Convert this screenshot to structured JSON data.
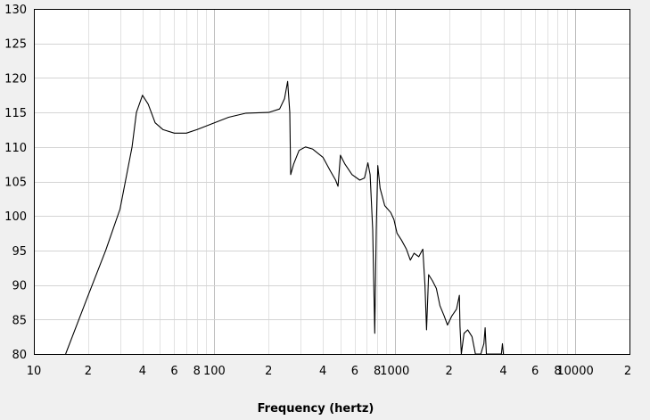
{
  "chart_data": {
    "type": "line",
    "title": "",
    "xlabel": "Frequency (hertz)",
    "ylabel": "",
    "x_scale": "log",
    "xlim": [
      10,
      20000
    ],
    "ylim": [
      80,
      130
    ],
    "grid": true,
    "y_ticks": [
      80,
      85,
      90,
      95,
      100,
      105,
      110,
      115,
      120,
      125,
      130
    ],
    "x_tick_labels": [
      {
        "value": 10,
        "label": "10"
      },
      {
        "value": 20,
        "label": "2"
      },
      {
        "value": 40,
        "label": "4"
      },
      {
        "value": 60,
        "label": "6"
      },
      {
        "value": 80,
        "label": "8"
      },
      {
        "value": 100,
        "label": "100"
      },
      {
        "value": 200,
        "label": "2"
      },
      {
        "value": 400,
        "label": "4"
      },
      {
        "value": 600,
        "label": "6"
      },
      {
        "value": 800,
        "label": "8"
      },
      {
        "value": 1000,
        "label": "1000"
      },
      {
        "value": 2000,
        "label": "2"
      },
      {
        "value": 4000,
        "label": "4"
      },
      {
        "value": 6000,
        "label": "6"
      },
      {
        "value": 8000,
        "label": "8"
      },
      {
        "value": 10000,
        "label": "10000"
      },
      {
        "value": 20000,
        "label": "2"
      }
    ],
    "series": [
      {
        "name": "",
        "color": "#000000",
        "points": [
          [
            15,
            80
          ],
          [
            20,
            88.5
          ],
          [
            25,
            95
          ],
          [
            30,
            101
          ],
          [
            35,
            110
          ],
          [
            37,
            115
          ],
          [
            40,
            117.5
          ],
          [
            43,
            116.2
          ],
          [
            47,
            113.5
          ],
          [
            52,
            112.5
          ],
          [
            60,
            112
          ],
          [
            70,
            112
          ],
          [
            80,
            112.5
          ],
          [
            100,
            113.5
          ],
          [
            120,
            114.3
          ],
          [
            150,
            114.9
          ],
          [
            200,
            115
          ],
          [
            230,
            115.5
          ],
          [
            245,
            117
          ],
          [
            255,
            119.5
          ],
          [
            262,
            115
          ],
          [
            265,
            106
          ],
          [
            275,
            107.5
          ],
          [
            295,
            109.5
          ],
          [
            320,
            110
          ],
          [
            350,
            109.7
          ],
          [
            400,
            108.5
          ],
          [
            440,
            106.5
          ],
          [
            470,
            105.2
          ],
          [
            485,
            104.3
          ],
          [
            500,
            108.8
          ],
          [
            530,
            107.5
          ],
          [
            580,
            106
          ],
          [
            640,
            105.2
          ],
          [
            680,
            105.5
          ],
          [
            710,
            107.7
          ],
          [
            730,
            106
          ],
          [
            755,
            98
          ],
          [
            775,
            83
          ],
          [
            790,
            98
          ],
          [
            805,
            107.3
          ],
          [
            830,
            104
          ],
          [
            880,
            101.5
          ],
          [
            950,
            100.5
          ],
          [
            990,
            99.5
          ],
          [
            1030,
            97.5
          ],
          [
            1090,
            96.5
          ],
          [
            1160,
            95.2
          ],
          [
            1220,
            93.6
          ],
          [
            1280,
            94.6
          ],
          [
            1360,
            94.1
          ],
          [
            1430,
            95.2
          ],
          [
            1470,
            90
          ],
          [
            1500,
            83.5
          ],
          [
            1540,
            91.5
          ],
          [
            1620,
            90.6
          ],
          [
            1700,
            89.5
          ],
          [
            1780,
            87
          ],
          [
            1880,
            85.5
          ],
          [
            1960,
            84.2
          ],
          [
            2070,
            85.5
          ],
          [
            2200,
            86.5
          ],
          [
            2280,
            88.5
          ],
          [
            2300,
            84
          ],
          [
            2340,
            80
          ],
          [
            2420,
            83
          ],
          [
            2540,
            83.5
          ],
          [
            2680,
            82.5
          ],
          [
            2800,
            80
          ],
          [
            3000,
            80
          ],
          [
            3120,
            81.5
          ],
          [
            3170,
            83.8
          ],
          [
            3220,
            80
          ],
          [
            3900,
            80
          ],
          [
            3950,
            81.5
          ],
          [
            4000,
            80
          ]
        ]
      }
    ]
  }
}
